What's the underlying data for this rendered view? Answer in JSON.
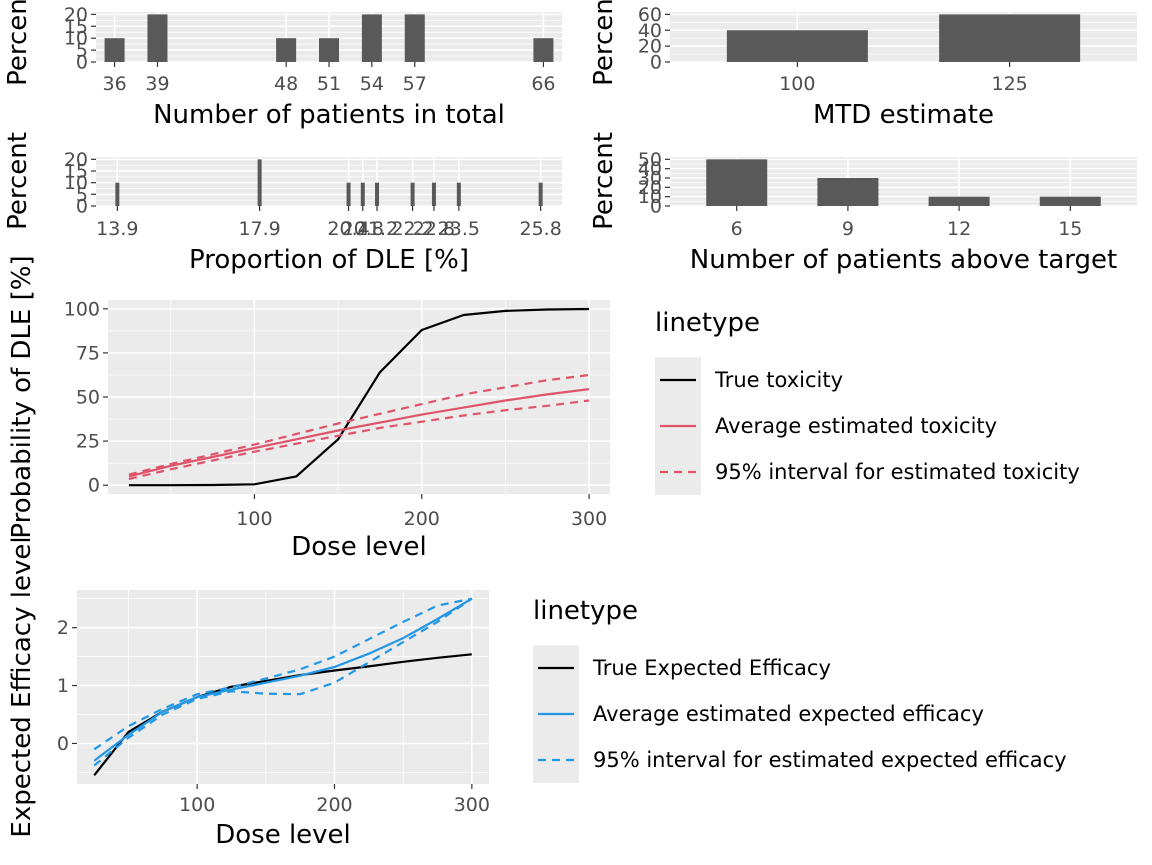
{
  "chart_data": [
    {
      "type": "bar",
      "xlabel": "Number of patients in total",
      "ylabel": "Percent",
      "x": [
        36,
        39,
        48,
        51,
        54,
        57,
        66
      ],
      "values": [
        10,
        20,
        10,
        10,
        20,
        20,
        10
      ],
      "xlim": [
        34.7,
        67.3
      ],
      "ylim": [
        0,
        21
      ],
      "yticks": [
        0,
        5,
        10,
        15,
        20
      ],
      "grid": true
    },
    {
      "type": "bar",
      "xlabel": "MTD estimate",
      "ylabel": "Percent",
      "categories": [
        "100",
        "125"
      ],
      "values": [
        40,
        60
      ],
      "ylim": [
        0,
        63
      ],
      "yticks": [
        0,
        20,
        40,
        60
      ],
      "grid": true
    },
    {
      "type": "bar",
      "xlabel": "Proportion of DLE [%]",
      "ylabel": "Percent",
      "x": [
        13.9,
        17.9,
        20.4,
        20.8,
        21.2,
        22.2,
        22.8,
        23.5,
        25.8
      ],
      "values": [
        10,
        20,
        10,
        10,
        10,
        10,
        10,
        10,
        10
      ],
      "xtick_labels": [
        "13.9",
        "17.9",
        "20.4",
        "20.8",
        "21.2",
        "22.2",
        "22.8",
        "23.5",
        "25.8"
      ],
      "xlim": [
        13.3,
        26.4
      ],
      "ylim": [
        0,
        21
      ],
      "yticks": [
        0,
        5,
        10,
        15,
        20
      ],
      "grid": true
    },
    {
      "type": "bar",
      "xlabel": "Number of patients above target",
      "ylabel": "Percent",
      "categories": [
        "6",
        "9",
        "12",
        "15"
      ],
      "values": [
        50,
        30,
        10,
        10
      ],
      "ylim": [
        0,
        52.5
      ],
      "yticks": [
        0,
        10,
        20,
        30,
        40,
        50
      ],
      "grid": true
    },
    {
      "type": "line",
      "xlabel": "Dose level",
      "ylabel": "Probability of DLE [%]",
      "xlim": [
        12.5,
        312.5
      ],
      "ylim": [
        -5,
        105
      ],
      "xticks": [
        100,
        200,
        300
      ],
      "yticks": [
        0,
        25,
        50,
        75,
        100
      ],
      "grid": true,
      "legend": {
        "title": "linetype",
        "position": "right"
      },
      "series": [
        {
          "name": "True toxicity",
          "color": "#000000",
          "dash": "solid",
          "x": [
            25,
            50,
            75,
            100,
            125,
            150,
            175,
            200,
            225,
            250,
            275,
            300
          ],
          "y": [
            0,
            0,
            0.1,
            0.5,
            5,
            26,
            64,
            88,
            96.5,
            98.8,
            99.6,
            99.9
          ]
        },
        {
          "name": "Average estimated toxicity",
          "color": "#DF536B",
          "dash": "solid",
          "x": [
            25,
            50,
            75,
            100,
            125,
            150,
            175,
            200,
            225,
            250,
            275,
            300
          ],
          "y": [
            5,
            11,
            16,
            21,
            26,
            31,
            35.5,
            40,
            44,
            48,
            51.5,
            54.5
          ]
        },
        {
          "name": "95% interval for estimated toxicity",
          "color": "#DF536B",
          "dash": "dashed",
          "x": [
            25,
            50,
            75,
            100,
            125,
            150,
            175,
            200,
            225,
            250,
            275,
            300
          ],
          "y": [
            6,
            12,
            17.5,
            23,
            29,
            35,
            40.5,
            46,
            51.5,
            55.5,
            59.5,
            62.5
          ]
        },
        {
          "name": "",
          "color": "#DF536B",
          "dash": "dashed",
          "x": [
            25,
            50,
            75,
            100,
            125,
            150,
            175,
            200,
            225,
            250,
            275,
            300
          ],
          "y": [
            3.5,
            9,
            14,
            19,
            23.5,
            28,
            32.5,
            36,
            39.5,
            42.5,
            45,
            48
          ]
        }
      ]
    },
    {
      "type": "line",
      "xlabel": "Dose level",
      "ylabel": "Expected Efficacy level",
      "xlim": [
        12.5,
        312.5
      ],
      "ylim": [
        -0.7,
        2.65
      ],
      "xticks": [
        100,
        200,
        300
      ],
      "yticks": [
        0,
        1,
        2
      ],
      "grid": true,
      "legend": {
        "title": "linetype",
        "position": "right"
      },
      "series": [
        {
          "name": "True Expected Efficacy",
          "color": "#000000",
          "dash": "solid",
          "x": [
            25,
            50,
            75,
            100,
            125,
            150,
            175,
            200,
            225,
            250,
            275,
            300
          ],
          "y": [
            -0.55,
            0.2,
            0.55,
            0.8,
            0.98,
            1.08,
            1.18,
            1.26,
            1.33,
            1.41,
            1.48,
            1.54
          ]
        },
        {
          "name": "Average estimated expected efficacy",
          "color": "#2297E6",
          "dash": "solid",
          "x": [
            25,
            50,
            75,
            100,
            125,
            150,
            175,
            200,
            225,
            250,
            275,
            300
          ],
          "y": [
            -0.3,
            0.15,
            0.55,
            0.8,
            0.93,
            1.05,
            1.17,
            1.32,
            1.55,
            1.82,
            2.15,
            2.5
          ]
        },
        {
          "name": "95% interval for estimated expected efficacy",
          "color": "#2297E6",
          "dash": "dashed",
          "x": [
            25,
            50,
            75,
            100,
            125,
            150,
            175,
            200,
            225,
            250,
            275,
            300
          ],
          "y": [
            -0.1,
            0.3,
            0.6,
            0.85,
            0.97,
            1.12,
            1.28,
            1.5,
            1.8,
            2.1,
            2.38,
            2.5
          ]
        },
        {
          "name": "",
          "color": "#2297E6",
          "dash": "dashed",
          "x": [
            25,
            50,
            75,
            100,
            125,
            150,
            175,
            200,
            225,
            250,
            275,
            300
          ],
          "y": [
            -0.38,
            0.1,
            0.5,
            0.77,
            0.9,
            0.86,
            0.85,
            1.05,
            1.4,
            1.75,
            2.1,
            2.5
          ]
        }
      ]
    }
  ]
}
